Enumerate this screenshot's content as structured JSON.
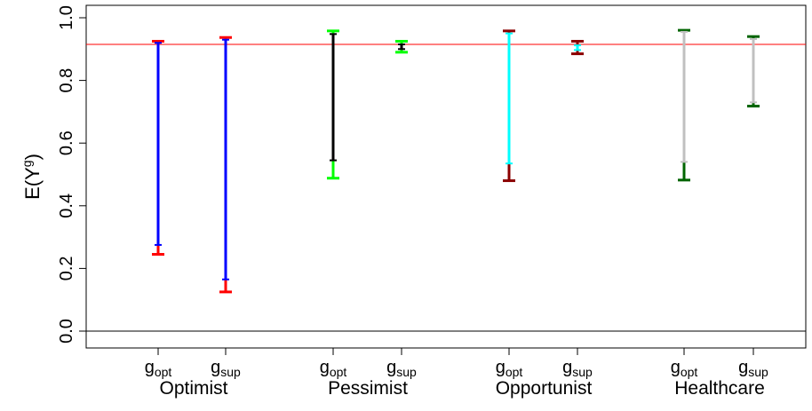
{
  "chart_data": {
    "type": "error-bar",
    "ylabel": "E(Y",
    "ylabel_sup": "g",
    "ylabel_close": ")",
    "ylim": [
      0.0,
      1.0
    ],
    "yticks": [
      0.0,
      0.2,
      0.4,
      0.6,
      0.8,
      1.0
    ],
    "ytick_labels": [
      "0.0",
      "0.2",
      "0.4",
      "0.6",
      "0.8",
      "1.0"
    ],
    "reference_line": {
      "y": 0.915,
      "color": "#ff0000"
    },
    "zero_line": {
      "y": 0.0,
      "color": "#000000"
    },
    "groups": [
      {
        "name": "Optimist",
        "regimes": [
          {
            "label": "g",
            "sub": "opt",
            "outer": [
              0.245,
              0.925
            ],
            "inner": [
              0.275,
              0.92
            ],
            "outer_color": "#ff0000",
            "inner_color": "#0000ff"
          },
          {
            "label": "g",
            "sub": "sup",
            "outer": [
              0.125,
              0.937
            ],
            "inner": [
              0.165,
              0.93
            ],
            "outer_color": "#ff0000",
            "inner_color": "#0000ff"
          }
        ]
      },
      {
        "name": "Pessimist",
        "regimes": [
          {
            "label": "g",
            "sub": "opt",
            "outer": [
              0.488,
              0.958
            ],
            "inner": [
              0.545,
              0.948
            ],
            "outer_color": "#00ff00",
            "inner_color": "#000000"
          },
          {
            "label": "g",
            "sub": "sup",
            "outer": [
              0.89,
              0.925
            ],
            "inner": [
              0.9,
              0.915
            ],
            "outer_color": "#00ff00",
            "inner_color": "#000000"
          }
        ]
      },
      {
        "name": "Opportunist",
        "regimes": [
          {
            "label": "g",
            "sub": "opt",
            "outer": [
              0.48,
              0.958
            ],
            "inner": [
              0.535,
              0.95
            ],
            "outer_color": "#8b0000",
            "inner_color": "#00ffff"
          },
          {
            "label": "g",
            "sub": "sup",
            "outer": [
              0.885,
              0.925
            ],
            "inner": [
              0.897,
              0.912
            ],
            "outer_color": "#8b0000",
            "inner_color": "#00ffff"
          }
        ]
      },
      {
        "name": "Healthcare",
        "regimes": [
          {
            "label": "g",
            "sub": "opt",
            "outer": [
              0.482,
              0.96
            ],
            "inner": [
              0.54,
              0.955
            ],
            "outer_color": "#006400",
            "inner_color": "#c0c0c0"
          },
          {
            "label": "g",
            "sub": "sup",
            "outer": [
              0.718,
              0.94
            ],
            "inner": [
              0.73,
              0.932
            ],
            "outer_color": "#006400",
            "inner_color": "#c0c0c0"
          }
        ]
      }
    ]
  }
}
